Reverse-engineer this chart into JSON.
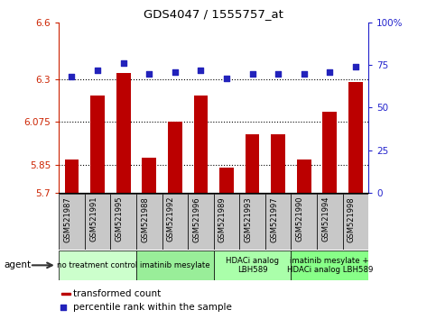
{
  "title": "GDS4047 / 1555757_at",
  "samples": [
    "GSM521987",
    "GSM521991",
    "GSM521995",
    "GSM521988",
    "GSM521992",
    "GSM521996",
    "GSM521989",
    "GSM521993",
    "GSM521997",
    "GSM521990",
    "GSM521994",
    "GSM521998"
  ],
  "bar_values": [
    5.875,
    6.215,
    6.335,
    5.885,
    6.075,
    6.215,
    5.835,
    6.01,
    6.01,
    5.875,
    6.13,
    6.285
  ],
  "dot_values_pct": [
    68,
    72,
    76,
    70,
    71,
    72,
    67,
    70,
    70,
    70,
    71,
    74
  ],
  "ylim_left": [
    5.7,
    6.6
  ],
  "ylim_right": [
    0,
    100
  ],
  "yticks_left": [
    5.7,
    5.85,
    6.075,
    6.3,
    6.6
  ],
  "yticks_right": [
    0,
    25,
    50,
    75,
    100
  ],
  "right_tick_labels": [
    "0",
    "25",
    "50",
    "75",
    "100%"
  ],
  "hlines": [
    5.85,
    6.075,
    6.3
  ],
  "bar_color": "#bb0000",
  "dot_color": "#2222bb",
  "groups": [
    {
      "label": "no treatment control",
      "start": 0,
      "end": 3,
      "color": "#ccffcc"
    },
    {
      "label": "imatinib mesylate",
      "start": 3,
      "end": 6,
      "color": "#99ee99"
    },
    {
      "label": "HDACi analog\nLBH589",
      "start": 6,
      "end": 9,
      "color": "#aaffaa"
    },
    {
      "label": "imatinib mesylate +\nHDACi analog LBH589",
      "start": 9,
      "end": 12,
      "color": "#88ff88"
    }
  ],
  "legend_label_bar": "transformed count",
  "legend_label_dot": "percentile rank within the sample",
  "agent_label": "agent",
  "bar_width": 0.55,
  "sample_box_color": "#c8c8c8",
  "axis_color_left": "#cc2200",
  "axis_color_right": "#2222cc",
  "bg_color": "#ffffff"
}
